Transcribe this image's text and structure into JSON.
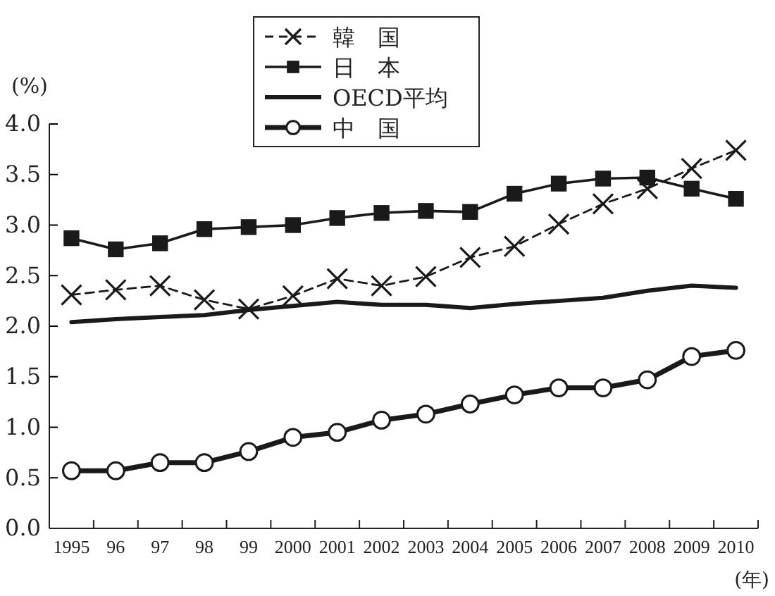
{
  "chart_data": {
    "type": "line",
    "ylabel": "(%)",
    "xlabel": "(年)",
    "categories": [
      "1995",
      "96",
      "97",
      "98",
      "99",
      "2000",
      "2001",
      "2002",
      "2003",
      "2004",
      "2005",
      "2006",
      "2007",
      "2008",
      "2009",
      "2010"
    ],
    "series": [
      {
        "name": "韓　国",
        "color": "#1a1a1a",
        "marker": "cross",
        "line_style": "dashed",
        "values": [
          2.31,
          2.36,
          2.4,
          2.26,
          2.17,
          2.3,
          2.47,
          2.4,
          2.49,
          2.68,
          2.79,
          3.01,
          3.21,
          3.36,
          3.56,
          3.74
        ]
      },
      {
        "name": "日　本",
        "color": "#1a1a1a",
        "marker": "square",
        "line_style": "solid",
        "values": [
          2.87,
          2.76,
          2.82,
          2.96,
          2.98,
          3.0,
          3.07,
          3.12,
          3.14,
          3.13,
          3.31,
          3.41,
          3.46,
          3.47,
          3.36,
          3.26
        ]
      },
      {
        "name": "OECD平均",
        "color": "#1a1a1a",
        "marker": "none",
        "line_style": "solid",
        "values": [
          2.04,
          2.07,
          2.09,
          2.11,
          2.16,
          2.2,
          2.24,
          2.21,
          2.21,
          2.18,
          2.22,
          2.25,
          2.28,
          2.35,
          2.4,
          2.38
        ]
      },
      {
        "name": "中　国",
        "color": "#1a1a1a",
        "marker": "circle",
        "line_style": "solid",
        "values": [
          0.57,
          0.57,
          0.65,
          0.65,
          0.76,
          0.9,
          0.95,
          1.07,
          1.13,
          1.23,
          1.32,
          1.39,
          1.39,
          1.47,
          1.7,
          1.76
        ]
      }
    ],
    "ylim": [
      0,
      4
    ],
    "yticks": [
      {
        "value": 0,
        "label": "0.0"
      },
      {
        "value": 0.5,
        "label": "0.5"
      },
      {
        "value": 1,
        "label": "1.0"
      },
      {
        "value": 1.5,
        "label": "1.5"
      },
      {
        "value": 2,
        "label": "2.0"
      },
      {
        "value": 2.5,
        "label": "2.5"
      },
      {
        "value": 3,
        "label": "3.0"
      },
      {
        "value": 3.5,
        "label": "3.5"
      },
      {
        "value": 4,
        "label": "4.0"
      }
    ],
    "grid": false,
    "legend": "top"
  }
}
